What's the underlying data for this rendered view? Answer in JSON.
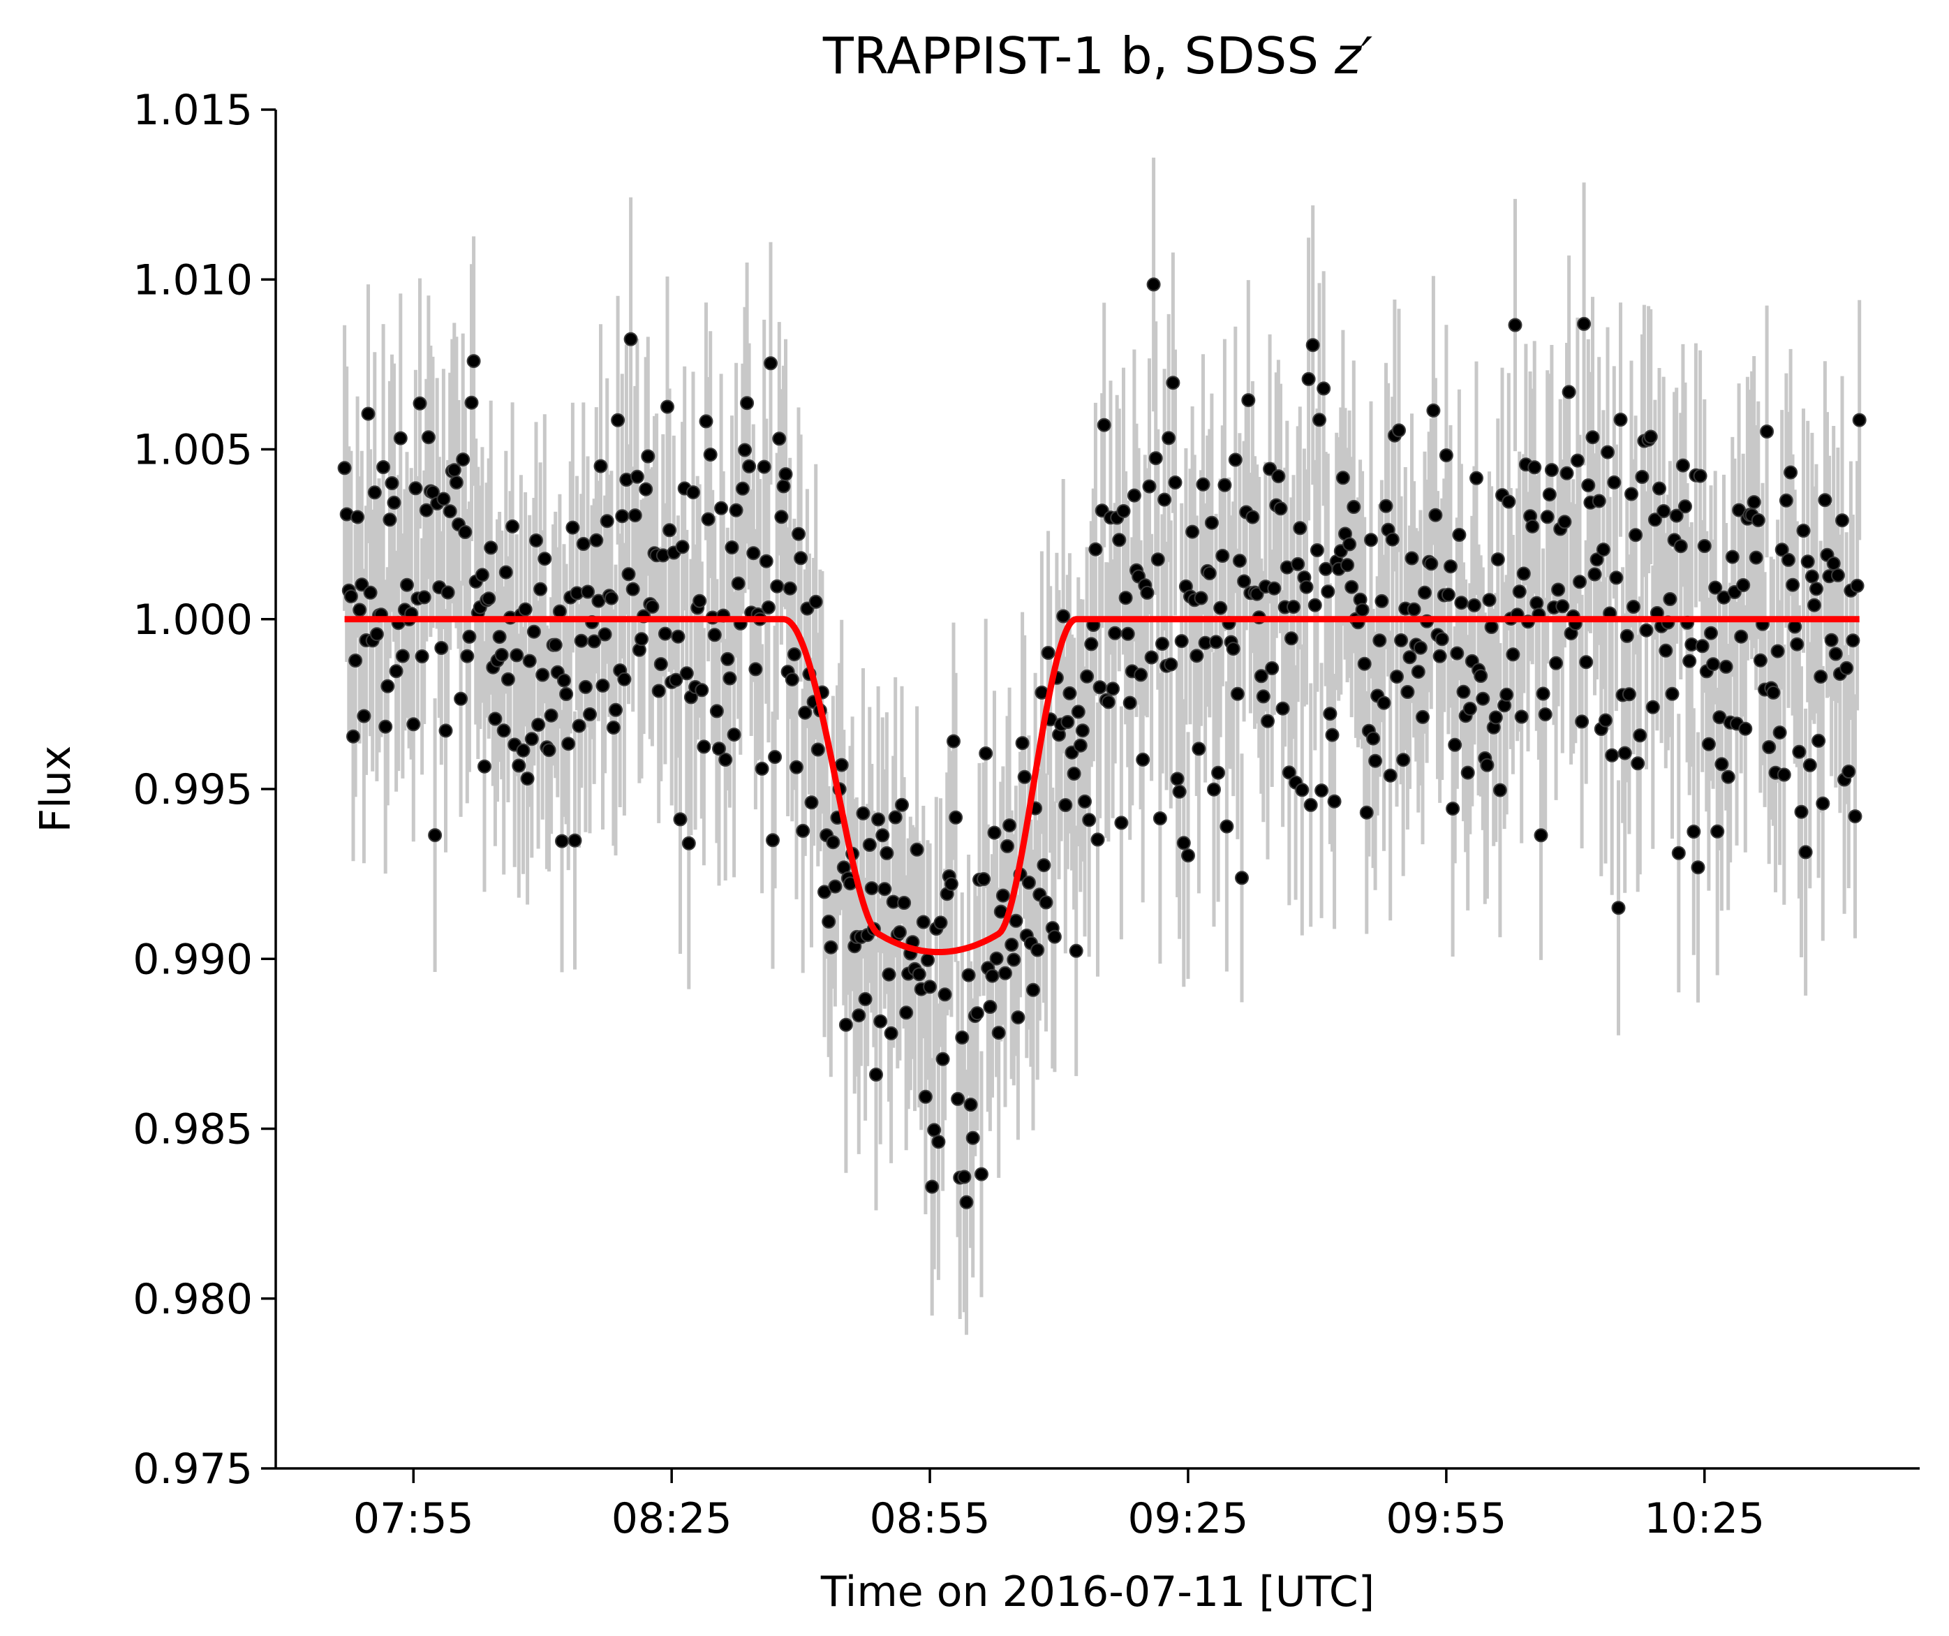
{
  "chart_data": {
    "type": "scatter",
    "title": "TRAPPIST-1 b, SDSS",
    "title_italic_suffix": "z′",
    "xlabel": "Time on 2016-07-11 [UTC]",
    "ylabel": "Flux",
    "x_units": "time of day (HH:MM, UTC)",
    "xlim": [
      "07:39",
      "10:50"
    ],
    "ylim": [
      0.975,
      1.015
    ],
    "xticks": [
      "07:55",
      "08:25",
      "08:55",
      "09:25",
      "09:55",
      "10:25"
    ],
    "yticks": [
      "0.975",
      "0.980",
      "0.985",
      "0.990",
      "0.995",
      "1.000",
      "1.005",
      "1.010",
      "1.015"
    ],
    "grid": false,
    "legend": "none",
    "series": [
      {
        "kind": "errorbar-points",
        "time_start": "07:47",
        "time_end": "10:43",
        "cadence_s": 15,
        "flux_binned_5min": [
          {
            "t": "07:50",
            "flux": 1.0015
          },
          {
            "t": "07:55",
            "flux": 1.0005
          },
          {
            "t": "08:00",
            "flux": 1.0012
          },
          {
            "t": "08:05",
            "flux": 0.9995
          },
          {
            "t": "08:10",
            "flux": 0.9993
          },
          {
            "t": "08:15",
            "flux": 0.9998
          },
          {
            "t": "08:20",
            "flux": 1.0008
          },
          {
            "t": "08:25",
            "flux": 0.9997
          },
          {
            "t": "08:30",
            "flux": 0.9998
          },
          {
            "t": "08:35",
            "flux": 1.001
          },
          {
            "t": "08:40",
            "flux": 0.9992
          },
          {
            "t": "08:45",
            "flux": 0.9918
          },
          {
            "t": "08:50",
            "flux": 0.9905
          },
          {
            "t": "08:55",
            "flux": 0.9895
          },
          {
            "t": "09:00",
            "flux": 0.9898
          },
          {
            "t": "09:05",
            "flux": 0.9905
          },
          {
            "t": "09:10",
            "flux": 0.9935
          },
          {
            "t": "09:15",
            "flux": 1.0005
          },
          {
            "t": "09:20",
            "flux": 1.0003
          },
          {
            "t": "09:25",
            "flux": 0.9998
          },
          {
            "t": "09:30",
            "flux": 1.0002
          },
          {
            "t": "09:35",
            "flux": 1.0005
          },
          {
            "t": "09:40",
            "flux": 1.0
          },
          {
            "t": "09:45",
            "flux": 1.0003
          },
          {
            "t": "09:50",
            "flux": 1.0001
          },
          {
            "t": "09:55",
            "flux": 1.001
          },
          {
            "t": "10:00",
            "flux": 0.9992
          },
          {
            "t": "10:05",
            "flux": 1.0
          },
          {
            "t": "10:10",
            "flux": 1.0012
          },
          {
            "t": "10:15",
            "flux": 1.0005
          },
          {
            "t": "10:20",
            "flux": 1.001
          },
          {
            "t": "10:25",
            "flux": 1.0002
          },
          {
            "t": "10:30",
            "flux": 1.0
          },
          {
            "t": "10:35",
            "flux": 0.9995
          },
          {
            "t": "10:40",
            "flux": 1.0005
          }
        ],
        "scatter_sigma": 0.003,
        "errorbar_halfwidth": 0.0038,
        "marker_color": "#000000",
        "errorbar_color": "#c8c8c8"
      },
      {
        "kind": "model-line",
        "color": "#ff0000",
        "baseline": 1.0,
        "ingress_start": "08:38",
        "ingress_end": "08:49",
        "egress_start": "09:03",
        "egress_end": "09:12",
        "mid_transit": "08:56",
        "min_flux": 0.9902
      }
    ]
  }
}
